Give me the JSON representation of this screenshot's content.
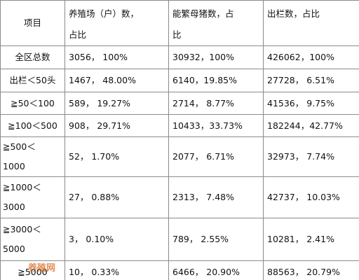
{
  "table": {
    "header": [
      "项目",
      "养殖场（户）数，\n占比",
      "能繁母猪数，占\n比",
      "出栏数，占比"
    ],
    "rows": [
      [
        "全区总数",
        "3056，  100%",
        "30932，100%",
        "426062，100%"
      ],
      [
        "出栏＜50头",
        "1467，  48.00%",
        "6140，19.85%",
        "27728，  6.51%"
      ],
      [
        "≧50＜100",
        "589，   19.27%",
        "2714，  8.77%",
        "41536，  9.75%"
      ],
      [
        "≧100＜500",
        "908，  29.71%",
        "10433，33.73%",
        "182244，42.77%"
      ],
      [
        "≧500＜\n1000",
        "52，    1.70%",
        "2077，  6.71%",
        "32973，  7.74%"
      ],
      [
        "≧1000＜\n3000",
        "27，    0.88%",
        "2313，  7.48%",
        "42737，  10.03%"
      ],
      [
        "≧3000＜\n5000",
        "3，     0.10%",
        "789，  2.55%",
        "10281，  2.41%"
      ],
      [
        "≧5000",
        "10，    0.33%",
        "6466，  20.90%",
        "88563，  20.79%"
      ]
    ]
  },
  "watermark": "养殖网"
}
